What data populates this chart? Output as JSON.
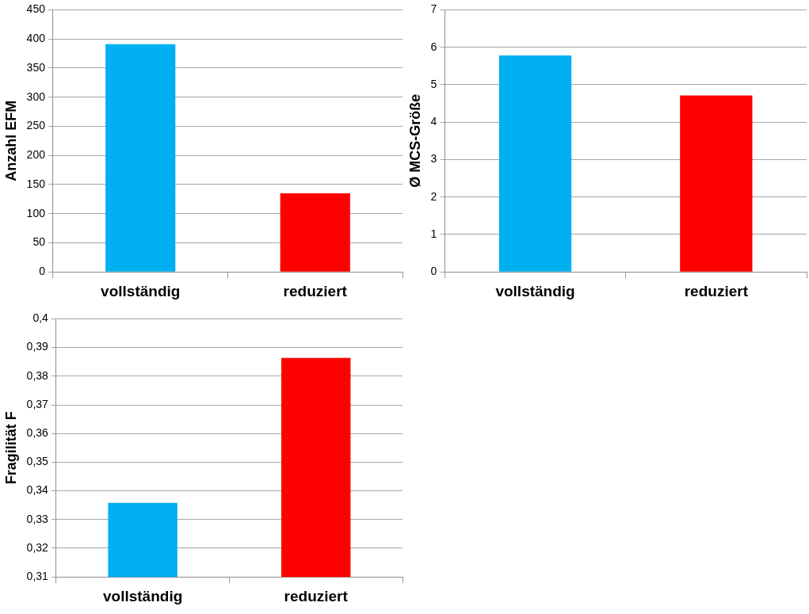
{
  "chart_data": [
    {
      "type": "bar",
      "ylabel": "Anzahl EFM",
      "categories": [
        "vollständig",
        "reduziert"
      ],
      "values": [
        391,
        135
      ],
      "colors": [
        "#00b0f0",
        "#ff0000"
      ],
      "ylim": [
        0,
        450
      ],
      "yticks": [
        0,
        50,
        100,
        150,
        200,
        250,
        300,
        350,
        400,
        450
      ],
      "grid": "y"
    },
    {
      "type": "bar",
      "ylabel": "Ø MCS-Größe",
      "categories": [
        "vollständig",
        "reduziert"
      ],
      "values": [
        5.78,
        4.71
      ],
      "colors": [
        "#00b0f0",
        "#ff0000"
      ],
      "ylim": [
        0,
        7
      ],
      "yticks": [
        0,
        1,
        2,
        3,
        4,
        5,
        6,
        7
      ],
      "grid": "y"
    },
    {
      "type": "bar",
      "ylabel": "Fragilität F",
      "categories": [
        "vollständig",
        "reduziert"
      ],
      "values": [
        0.3358,
        0.3864
      ],
      "colors": [
        "#00b0f0",
        "#ff0000"
      ],
      "ylim": [
        0.31,
        0.4
      ],
      "yticks": [
        {
          "value": 0.31,
          "label": "0,31"
        },
        {
          "value": 0.32,
          "label": "0,32"
        },
        {
          "value": 0.33,
          "label": "0,33"
        },
        {
          "value": 0.34,
          "label": "0,34"
        },
        {
          "value": 0.35,
          "label": "0,35"
        },
        {
          "value": 0.36,
          "label": "0,36"
        },
        {
          "value": 0.37,
          "label": "0,37"
        },
        {
          "value": 0.38,
          "label": "0,38"
        },
        {
          "value": 0.39,
          "label": "0,39"
        },
        {
          "value": 0.4,
          "label": "0,4"
        }
      ],
      "grid": "y"
    }
  ]
}
